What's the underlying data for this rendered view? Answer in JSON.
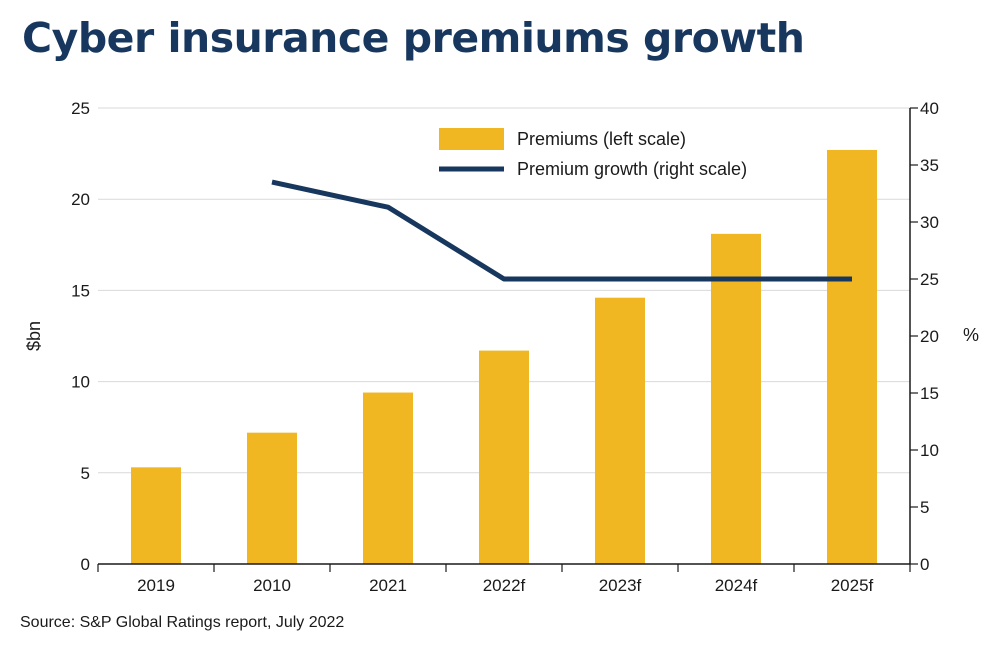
{
  "title": "Cyber insurance premiums growth",
  "source": "Source: S&P Global Ratings report, July 2022",
  "colors": {
    "bar": "#F0B722",
    "line": "#17375E",
    "grid": "#d9d9d9",
    "axis": "#1a1a1a"
  },
  "chart_data": {
    "type": "bar",
    "categories": [
      "2019",
      "2010",
      "2021",
      "2022f",
      "2023f",
      "2024f",
      "2025f"
    ],
    "series": [
      {
        "name": "Premiums (left scale)",
        "type": "bar",
        "axis": "left",
        "values": [
          5.3,
          7.2,
          9.4,
          11.7,
          14.6,
          18.1,
          22.7
        ]
      },
      {
        "name": "Premium growth (right scale)",
        "type": "line",
        "axis": "right",
        "values": [
          null,
          33.5,
          31.3,
          25.0,
          25.0,
          25.0,
          25.0
        ]
      }
    ],
    "y_left": {
      "label": "$bn",
      "ylim": [
        0,
        25
      ],
      "ticks": [
        0,
        5,
        10,
        15,
        20,
        25
      ]
    },
    "y_right": {
      "label": "%",
      "ylim": [
        0,
        40
      ],
      "ticks": [
        0,
        5,
        10,
        15,
        20,
        25,
        30,
        35,
        40
      ]
    },
    "grid": true,
    "legend_position": "top-right"
  }
}
